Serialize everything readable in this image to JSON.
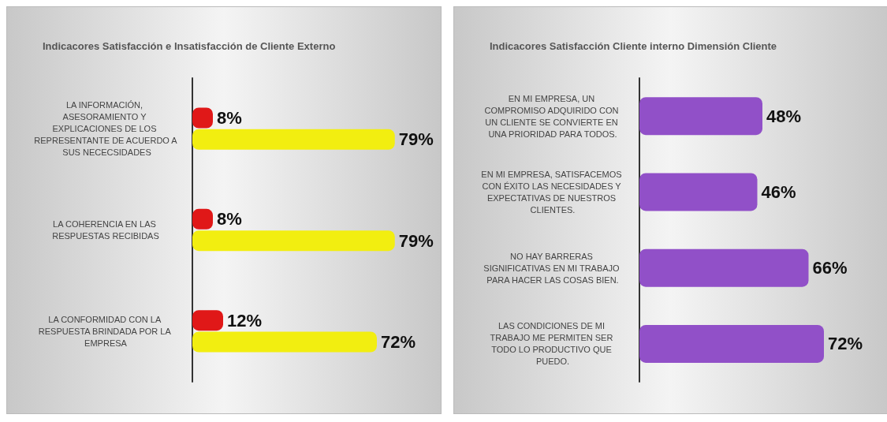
{
  "chart_data": [
    {
      "type": "bar",
      "orientation": "horizontal",
      "title": "Indicacores Satisfacción e Insatisfacción de Cliente Externo",
      "categories": [
        "LA INFORMACIÓN, ASESORAMIENTO Y EXPLICACIONES DE LOS REPRESENTANTE DE ACUERDO A SUS NECECSIDADES",
        "LA COHERENCIA EN LAS RESPUESTAS RECIBIDAS",
        "LA CONFORMIDAD CON LA RESPUESTA BRINDADA POR LA EMPRESA"
      ],
      "series": [
        {
          "color": "#e01818",
          "values": [
            8,
            8,
            12
          ],
          "value_labels": [
            "8%",
            "8%",
            "12%"
          ]
        },
        {
          "color": "#f2ee10",
          "values": [
            79,
            79,
            72
          ],
          "value_labels": [
            "79%",
            "79%",
            "72%"
          ]
        }
      ]
    },
    {
      "type": "bar",
      "orientation": "horizontal",
      "title": "Indicacores Satisfacción Cliente interno Dimensión Cliente",
      "categories": [
        "EN MI EMPRESA, UN COMPROMISO ADQUIRIDO CON UN CLIENTE SE CONVIERTE EN UNA PRIORIDAD PARA TODOS.",
        "EN MI EMPRESA, SATISFACEMOS CON ÉXITO LAS NECESIDADES Y EXPECTATIVAS DE NUESTROS CLIENTES.",
        "NO HAY BARRERAS SIGNIFICATIVAS EN MI TRABAJO PARA HACER LAS COSAS BIEN.",
        "LAS CONDICIONES DE MI TRABAJO ME PERMITEN SER TODO LO PRODUCTIVO QUE PUEDO."
      ],
      "series": [
        {
          "color": "#9150c8",
          "values": [
            48,
            46,
            66,
            72
          ],
          "value_labels": [
            "48%",
            "46%",
            "66%",
            "72%"
          ]
        }
      ]
    }
  ]
}
